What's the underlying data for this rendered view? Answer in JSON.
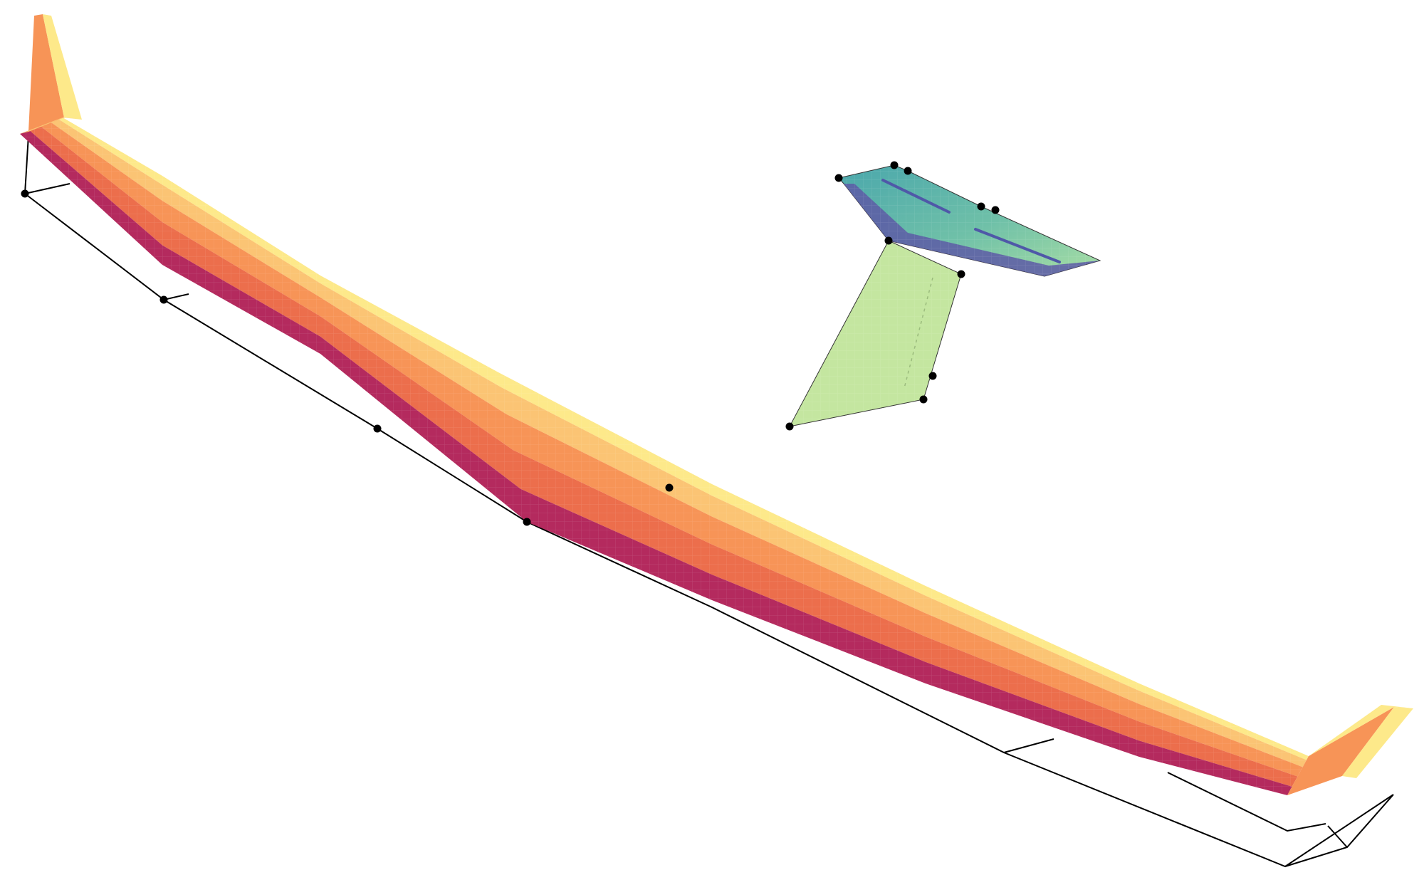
{
  "diagram": {
    "kind": "3d-aeroelastic-wing-and-tail-model",
    "components": [
      "main-wing",
      "horizontal-tail",
      "vertical-tail",
      "beam-frame",
      "beam-nodes"
    ],
    "colors": {
      "wing_leading_edge": "#fde98a",
      "wing_mid_light": "#fbc474",
      "wing_mid": "#f79457",
      "wing_mid_dark": "#ec6e4c",
      "wing_trailing_edge": "#b42a5e",
      "htail_light": "#7cc8a6",
      "htail_mid": "#4aa7ac",
      "htail_dark": "#5759a3",
      "vtail_fill": "#c4e6a0",
      "frame_stroke": "#000000",
      "node_fill": "#000000",
      "background": "#ffffff"
    }
  }
}
